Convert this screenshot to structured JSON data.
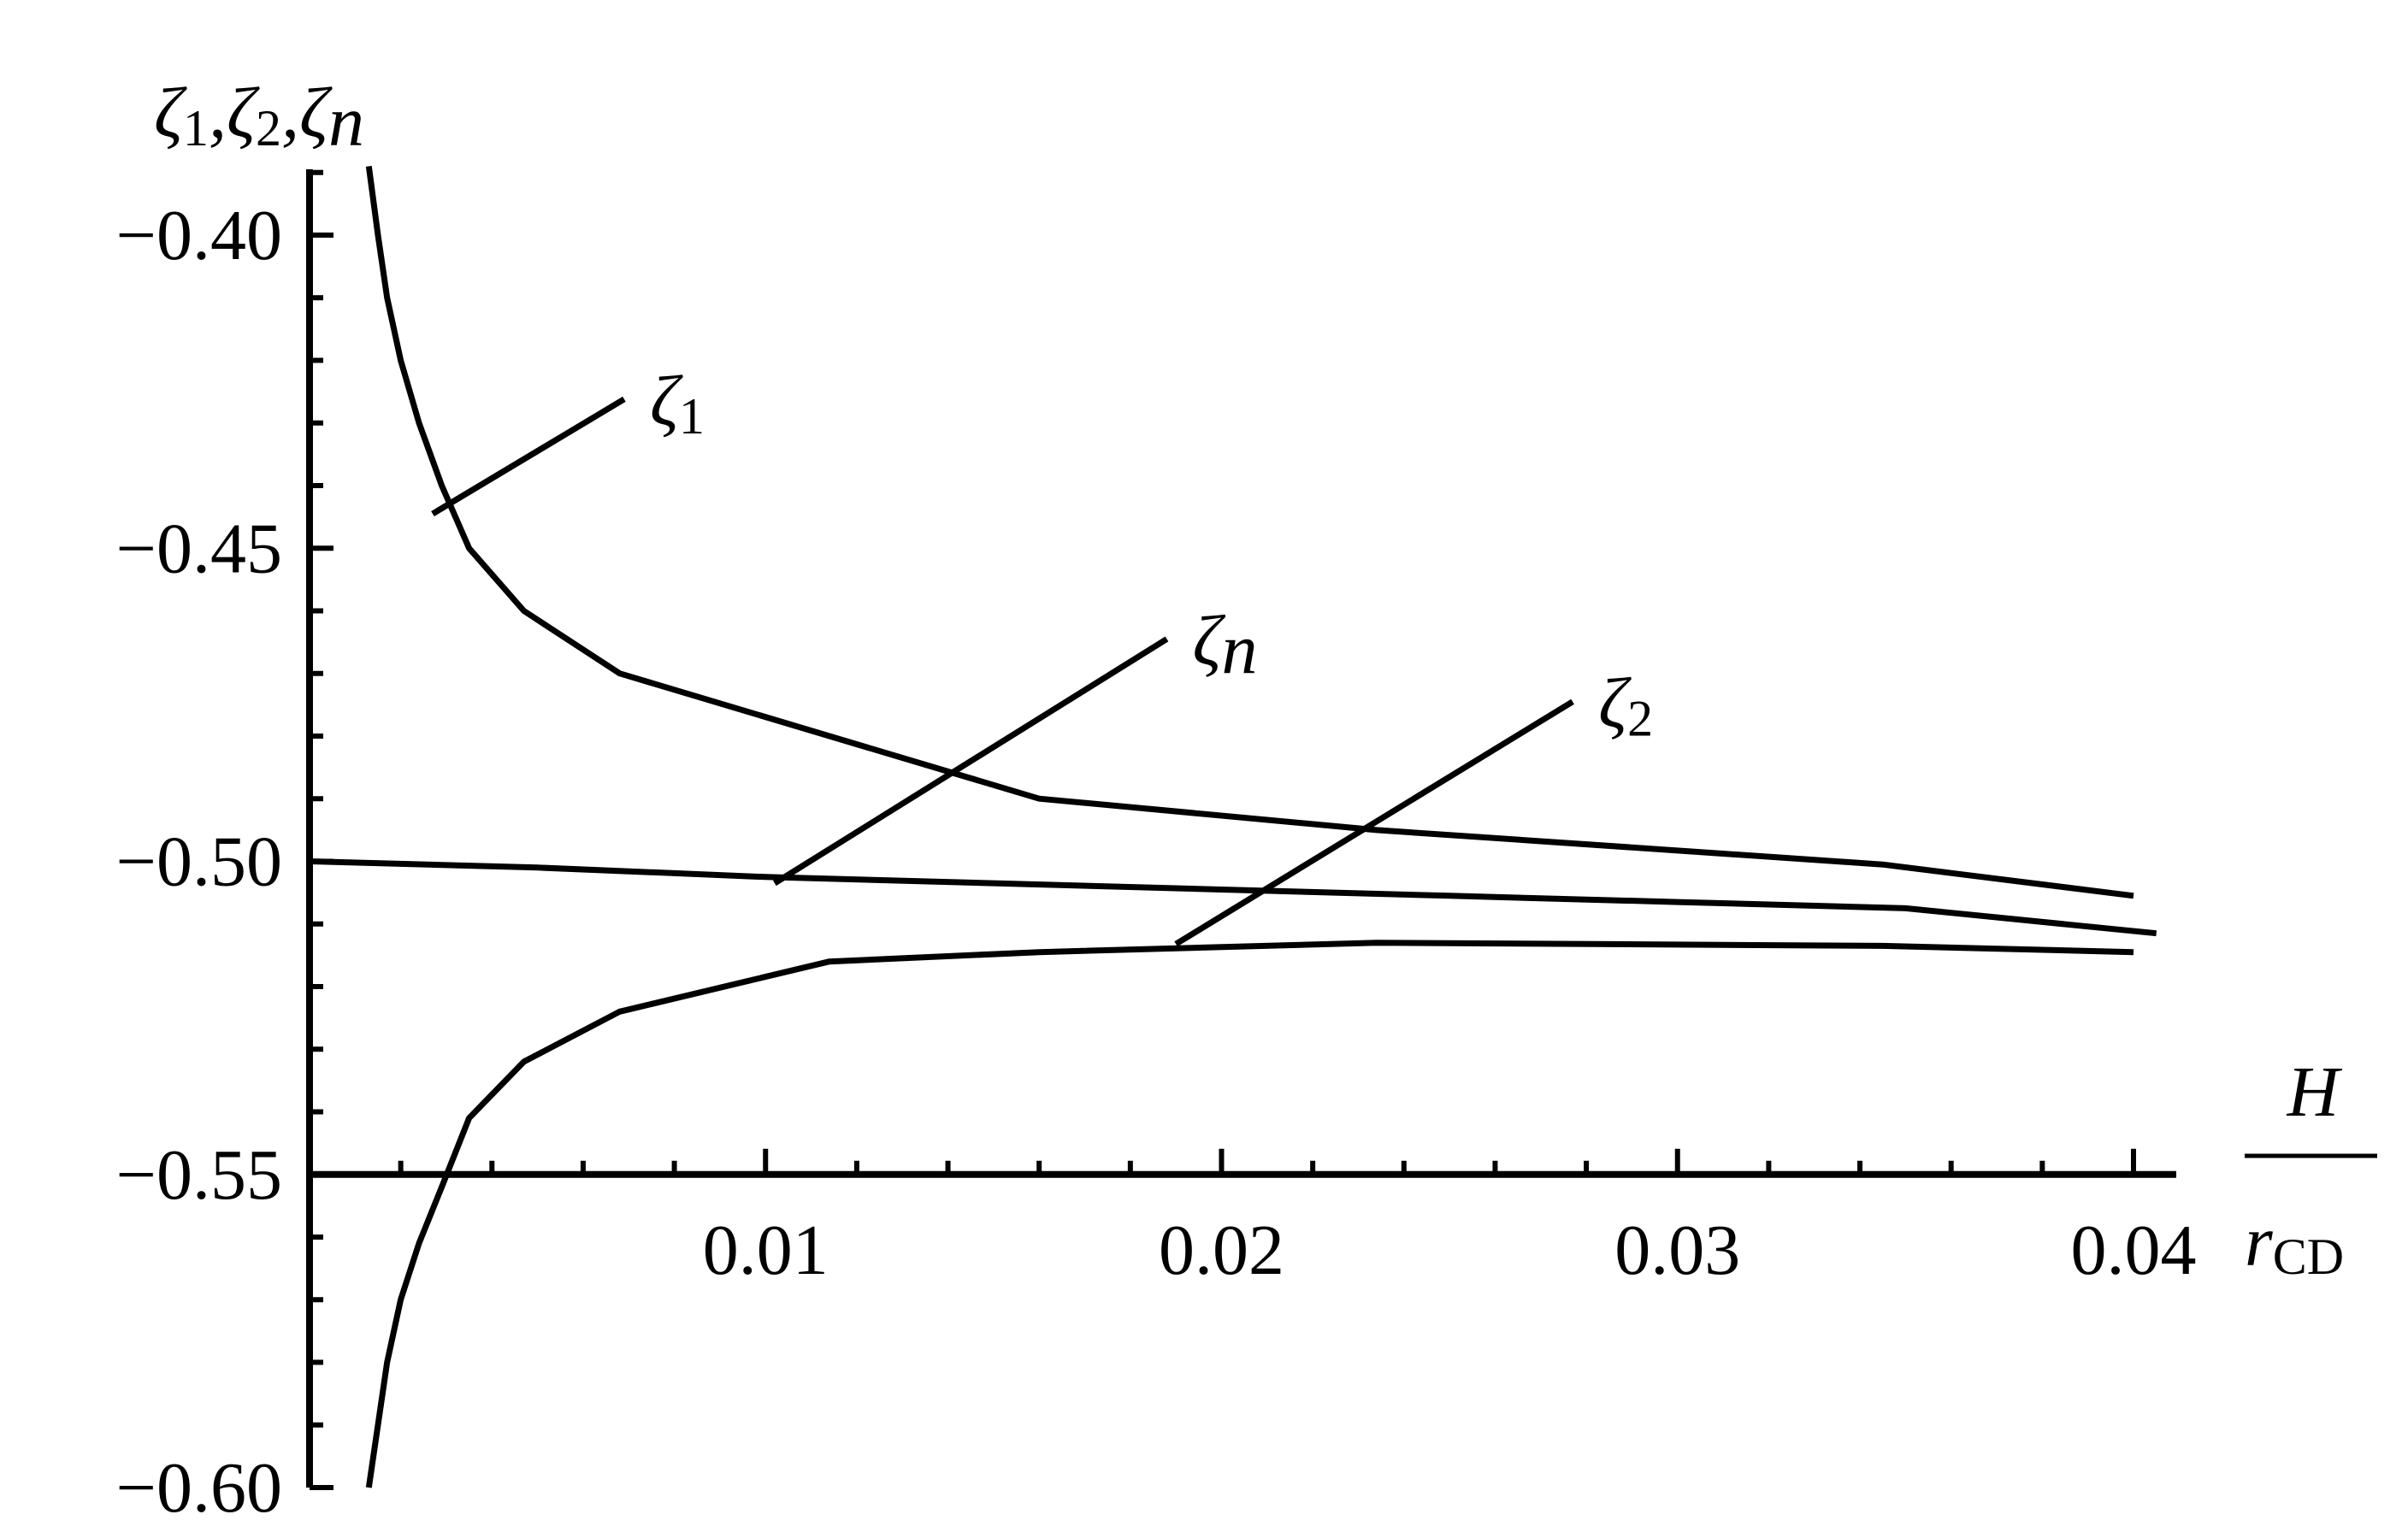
{
  "chart_data": {
    "type": "line",
    "ylabel": "ζ1,ζ2,ζn",
    "xlabel_numerator": "H",
    "xlabel_denominator": "rCD",
    "xlim": [
      0,
      0.04
    ],
    "ylim": [
      -0.6,
      -0.39
    ],
    "x_ticks": [
      0.01,
      0.02,
      0.03,
      0.04
    ],
    "x_tick_labels": [
      "0.01",
      "0.02",
      "0.03",
      "0.04"
    ],
    "y_ticks": [
      -0.4,
      -0.45,
      -0.5,
      -0.55,
      -0.6
    ],
    "y_tick_labels": [
      "−0.40",
      "−0.45",
      "−0.50",
      "−0.55",
      "−0.60"
    ],
    "grid": false,
    "series": [
      {
        "name": "ζ1",
        "x": [
          0.0013,
          0.0015,
          0.0017,
          0.002,
          0.0024,
          0.0029,
          0.0035,
          0.0047,
          0.0068,
          0.0114,
          0.016,
          0.0234,
          0.0345,
          0.04
        ],
        "y": [
          -0.389,
          -0.4,
          -0.41,
          -0.42,
          -0.43,
          -0.44,
          -0.45,
          -0.46,
          -0.47,
          -0.48,
          -0.49,
          -0.495,
          -0.5005,
          -0.5055
        ]
      },
      {
        "name": "ζn",
        "x": [
          0.0,
          0.005,
          0.01,
          0.015,
          0.02,
          0.025,
          0.03,
          0.035,
          0.0405
        ],
        "y": [
          -0.5,
          -0.501,
          -0.5025,
          -0.5035,
          -0.5045,
          -0.5055,
          -0.5065,
          -0.5075,
          -0.5115
        ]
      },
      {
        "name": "ζ2",
        "x": [
          0.0013,
          0.0015,
          0.0017,
          0.002,
          0.0024,
          0.0029,
          0.0035,
          0.0047,
          0.0068,
          0.0114,
          0.016,
          0.0234,
          0.0345,
          0.04
        ],
        "y": [
          -0.6,
          -0.59,
          -0.58,
          -0.57,
          -0.561,
          -0.552,
          -0.541,
          -0.532,
          -0.524,
          -0.516,
          -0.5145,
          -0.513,
          -0.5135,
          -0.5145
        ]
      }
    ],
    "annotations": [
      {
        "label": "ζ1",
        "from": [
          0.0027,
          -0.4445
        ],
        "to": [
          0.0069,
          -0.4262
        ]
      },
      {
        "label": "ζn",
        "from": [
          0.0102,
          -0.5035
        ],
        "to": [
          0.0188,
          -0.4645
        ]
      },
      {
        "label": "ζ2",
        "from": [
          0.019,
          -0.5132
        ],
        "to": [
          0.0277,
          -0.4745
        ]
      }
    ]
  }
}
